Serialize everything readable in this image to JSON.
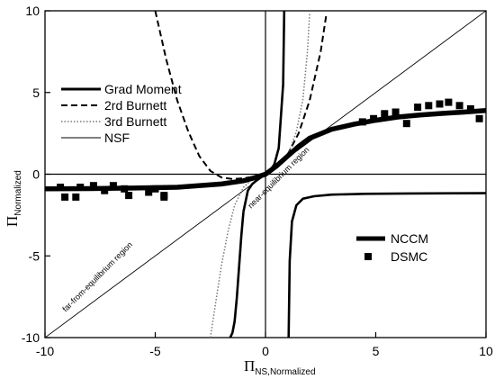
{
  "chart_data": {
    "type": "line",
    "xlabel_main": "Π",
    "xlabel_sub": "NS,Normalized",
    "ylabel_main": "Π",
    "ylabel_sub": "Normalized",
    "xlim": [
      -10,
      10
    ],
    "ylim": [
      -10,
      10
    ],
    "xticks": [
      -10,
      -5,
      0,
      5,
      10
    ],
    "yticks": [
      -10,
      -5,
      0,
      5,
      10
    ],
    "xtick_labels": [
      "-10",
      "-5",
      "0",
      "5",
      "10"
    ],
    "ytick_labels": [
      "-10",
      "-5",
      "0",
      "5",
      "10"
    ],
    "grid": false,
    "legend_top": [
      "Grad Moment",
      "2rd Burnett",
      "3rd Burnett",
      "NSF"
    ],
    "legend_bottom": [
      "NCCM",
      "DSMC"
    ],
    "annotations": {
      "near": "near-equilibrium region",
      "far": "far-from-equilibrium region"
    },
    "series": [
      {
        "name": "Grad Moment",
        "style": "solid-medium",
        "branches": [
          {
            "x": [
              -1.6,
              -1.5,
              -1.4,
              -1.3,
              -1.2,
              -1.1,
              -1.0
            ],
            "y": [
              -10,
              -9.7,
              -9.0,
              -7.6,
              -5.7,
              -3.8,
              -2.3
            ]
          },
          {
            "x": [
              -1.0,
              -0.8,
              -0.6,
              -0.4,
              -0.2,
              0.0,
              0.2,
              0.4,
              0.6,
              0.8,
              0.85
            ],
            "y": [
              -2.3,
              -1.0,
              -0.6,
              -0.38,
              -0.19,
              0.0,
              0.22,
              0.6,
              1.6,
              5.5,
              10
            ]
          }
        ]
      },
      {
        "name": "2rd Burnett",
        "style": "dashed",
        "x": [
          -5.0,
          -4.5,
          -4.0,
          -3.5,
          -3.0,
          -2.5,
          -2.0,
          -1.5,
          -1.0,
          -0.5,
          0.0,
          0.5,
          1.0,
          1.5,
          2.0,
          2.5,
          2.75
        ],
        "y": [
          10,
          7.0,
          4.5,
          2.6,
          1.1,
          0.2,
          -0.2,
          -0.3,
          -0.25,
          -0.15,
          0.0,
          0.45,
          1.2,
          2.5,
          4.5,
          7.5,
          9.7
        ]
      },
      {
        "name": "3rd Burnett",
        "style": "dotted",
        "x": [
          -2.5,
          -2.3,
          -2.0,
          -1.7,
          -1.4,
          -1.0,
          -0.6,
          -0.3,
          0.0,
          0.3,
          0.6,
          1.0,
          1.4,
          1.7,
          1.9,
          2.0
        ],
        "y": [
          -10,
          -8.2,
          -5.6,
          -3.5,
          -1.9,
          -0.8,
          -0.3,
          -0.1,
          0.0,
          0.2,
          0.5,
          1.1,
          2.6,
          4.6,
          7.5,
          9.8
        ]
      },
      {
        "name": "NSF",
        "style": "solid-thin",
        "x": [
          -10,
          10
        ],
        "y": [
          -10,
          10
        ]
      },
      {
        "name": "NCCM",
        "style": "solid-thick",
        "x": [
          -10,
          -8,
          -6,
          -4,
          -2,
          -1,
          -0.5,
          0.0,
          0.5,
          1.0,
          1.5,
          2.0,
          3.0,
          4.0,
          5.0,
          6.0,
          7.0,
          8.0,
          9.0,
          10.0
        ],
        "y": [
          -0.9,
          -0.88,
          -0.85,
          -0.8,
          -0.6,
          -0.4,
          -0.22,
          0.0,
          0.5,
          1.1,
          1.7,
          2.2,
          2.75,
          3.05,
          3.3,
          3.5,
          3.62,
          3.72,
          3.8,
          3.9
        ]
      },
      {
        "name": "Grad Moment lower-right branch",
        "style": "solid-medium",
        "x": [
          1.05,
          1.1,
          1.2,
          1.4,
          1.7,
          2.2,
          3.0,
          4.5,
          6.5,
          8.5,
          10.0
        ],
        "y": [
          -10,
          -5.3,
          -2.9,
          -1.9,
          -1.5,
          -1.35,
          -1.25,
          -1.2,
          -1.18,
          -1.17,
          -1.16
        ]
      },
      {
        "name": "DSMC",
        "style": "square-markers",
        "x": [
          -9.3,
          -9.1,
          -8.6,
          -8.4,
          -7.8,
          -7.3,
          -6.9,
          -6.4,
          -6.2,
          -5.3,
          -5.0,
          -4.6,
          -4.6,
          4.4,
          4.9,
          5.4,
          5.9,
          6.4,
          6.9,
          7.4,
          7.9,
          8.3,
          8.8,
          9.3,
          9.7
        ],
        "y": [
          -0.8,
          -1.4,
          -1.4,
          -0.8,
          -0.7,
          -1.0,
          -0.7,
          -0.9,
          -1.3,
          -1.1,
          -0.9,
          -1.4,
          -1.3,
          3.2,
          3.4,
          3.7,
          3.8,
          3.1,
          4.1,
          4.2,
          4.3,
          4.4,
          4.2,
          4.0,
          3.4
        ]
      }
    ]
  }
}
